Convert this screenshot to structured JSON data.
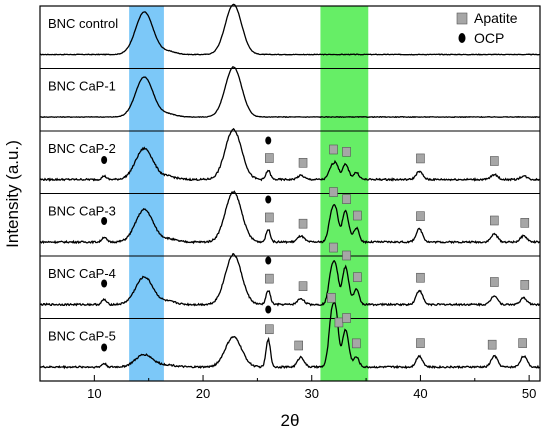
{
  "chart_data": {
    "type": "line",
    "xlabel": "2θ",
    "ylabel": "Intensity (a.u.)",
    "xlim": [
      5,
      51
    ],
    "xticks": [
      "10",
      "20",
      "30",
      "40",
      "50"
    ],
    "xtick_values": [
      10,
      20,
      30,
      40,
      50
    ],
    "highlight_bands": [
      {
        "x_range": [
          13.2,
          16.4
        ],
        "color": "#7cc8f8"
      },
      {
        "x_range": [
          30.8,
          35.2
        ],
        "color": "#66ee66"
      }
    ],
    "legend": {
      "position": "top-right",
      "entries": [
        {
          "label": "Apatite",
          "symbol": "square",
          "color": "#a6a6a6"
        },
        {
          "label": "OCP",
          "symbol": "ellipse",
          "color": "#000000"
        }
      ]
    },
    "series": [
      {
        "name": "BNC control",
        "peaks": [
          [
            14.6,
            0.8,
            0.85
          ],
          [
            16.8,
            0.7,
            0.06
          ],
          [
            22.8,
            0.75,
            1.0
          ]
        ],
        "apatite": [],
        "ocp": []
      },
      {
        "name": "BNC CaP-1",
        "peaks": [
          [
            14.6,
            0.8,
            0.8
          ],
          [
            16.8,
            0.7,
            0.06
          ],
          [
            22.8,
            0.75,
            1.0
          ]
        ],
        "apatite": [],
        "ocp": []
      },
      {
        "name": "BNC CaP-2",
        "peaks": [
          [
            14.6,
            0.8,
            0.62
          ],
          [
            16.8,
            0.7,
            0.06
          ],
          [
            22.8,
            0.75,
            1.0
          ],
          [
            10.9,
            0.2,
            0.07
          ],
          [
            26.0,
            0.2,
            0.18
          ],
          [
            29.0,
            0.3,
            0.08
          ],
          [
            31.9,
            0.3,
            0.28
          ],
          [
            32.3,
            0.2,
            0.2
          ],
          [
            33.1,
            0.3,
            0.3
          ],
          [
            34.1,
            0.25,
            0.14
          ],
          [
            39.9,
            0.3,
            0.16
          ],
          [
            46.8,
            0.3,
            0.1
          ],
          [
            49.5,
            0.3,
            0.07
          ]
        ],
        "apatite": [
          26.1,
          29.2,
          32.0,
          33.2,
          40.0,
          46.8
        ],
        "ocp": [
          10.9,
          26.0
        ]
      },
      {
        "name": "BNC CaP-3",
        "peaks": [
          [
            14.6,
            0.8,
            0.65
          ],
          [
            16.8,
            0.7,
            0.06
          ],
          [
            22.8,
            0.75,
            1.0
          ],
          [
            10.9,
            0.2,
            0.1
          ],
          [
            26.0,
            0.2,
            0.25
          ],
          [
            29.0,
            0.3,
            0.12
          ],
          [
            31.9,
            0.3,
            0.65
          ],
          [
            32.3,
            0.2,
            0.35
          ],
          [
            33.1,
            0.3,
            0.62
          ],
          [
            34.1,
            0.25,
            0.28
          ],
          [
            39.9,
            0.3,
            0.26
          ],
          [
            46.8,
            0.3,
            0.16
          ],
          [
            49.5,
            0.3,
            0.12
          ]
        ],
        "apatite": [
          26.1,
          29.2,
          32.0,
          33.2,
          34.2,
          40.0,
          46.8,
          49.6
        ],
        "ocp": [
          10.9,
          26.0
        ]
      },
      {
        "name": "BNC CaP-4",
        "peaks": [
          [
            14.6,
            0.8,
            0.55
          ],
          [
            16.8,
            0.7,
            0.06
          ],
          [
            22.8,
            0.75,
            1.0
          ],
          [
            10.9,
            0.2,
            0.1
          ],
          [
            26.0,
            0.2,
            0.28
          ],
          [
            29.0,
            0.3,
            0.12
          ],
          [
            31.9,
            0.3,
            0.78
          ],
          [
            32.3,
            0.2,
            0.4
          ],
          [
            33.1,
            0.3,
            0.75
          ],
          [
            34.1,
            0.25,
            0.3
          ],
          [
            39.9,
            0.3,
            0.28
          ],
          [
            46.8,
            0.3,
            0.18
          ],
          [
            49.5,
            0.3,
            0.13
          ]
        ],
        "apatite": [
          26.1,
          29.2,
          32.0,
          33.2,
          34.2,
          40.0,
          46.8,
          49.6
        ],
        "ocp": [
          10.9,
          26.0
        ]
      },
      {
        "name": "BNC CaP-5",
        "peaks": [
          [
            14.6,
            0.8,
            0.25
          ],
          [
            16.8,
            0.7,
            0.04
          ],
          [
            22.8,
            0.75,
            0.6
          ],
          [
            10.9,
            0.2,
            0.07
          ],
          [
            26.0,
            0.2,
            0.55
          ],
          [
            29.0,
            0.3,
            0.2
          ],
          [
            31.9,
            0.3,
            1.15
          ],
          [
            32.3,
            0.2,
            0.6
          ],
          [
            33.1,
            0.3,
            0.75
          ],
          [
            34.1,
            0.25,
            0.2
          ],
          [
            39.9,
            0.3,
            0.22
          ],
          [
            46.8,
            0.3,
            0.22
          ],
          [
            49.5,
            0.3,
            0.22
          ]
        ],
        "apatite": [
          26.1,
          28.8,
          31.8,
          32.5,
          33.2,
          34.1,
          40.0,
          46.6,
          49.4
        ],
        "ocp": [
          10.9,
          26.0
        ]
      }
    ]
  }
}
